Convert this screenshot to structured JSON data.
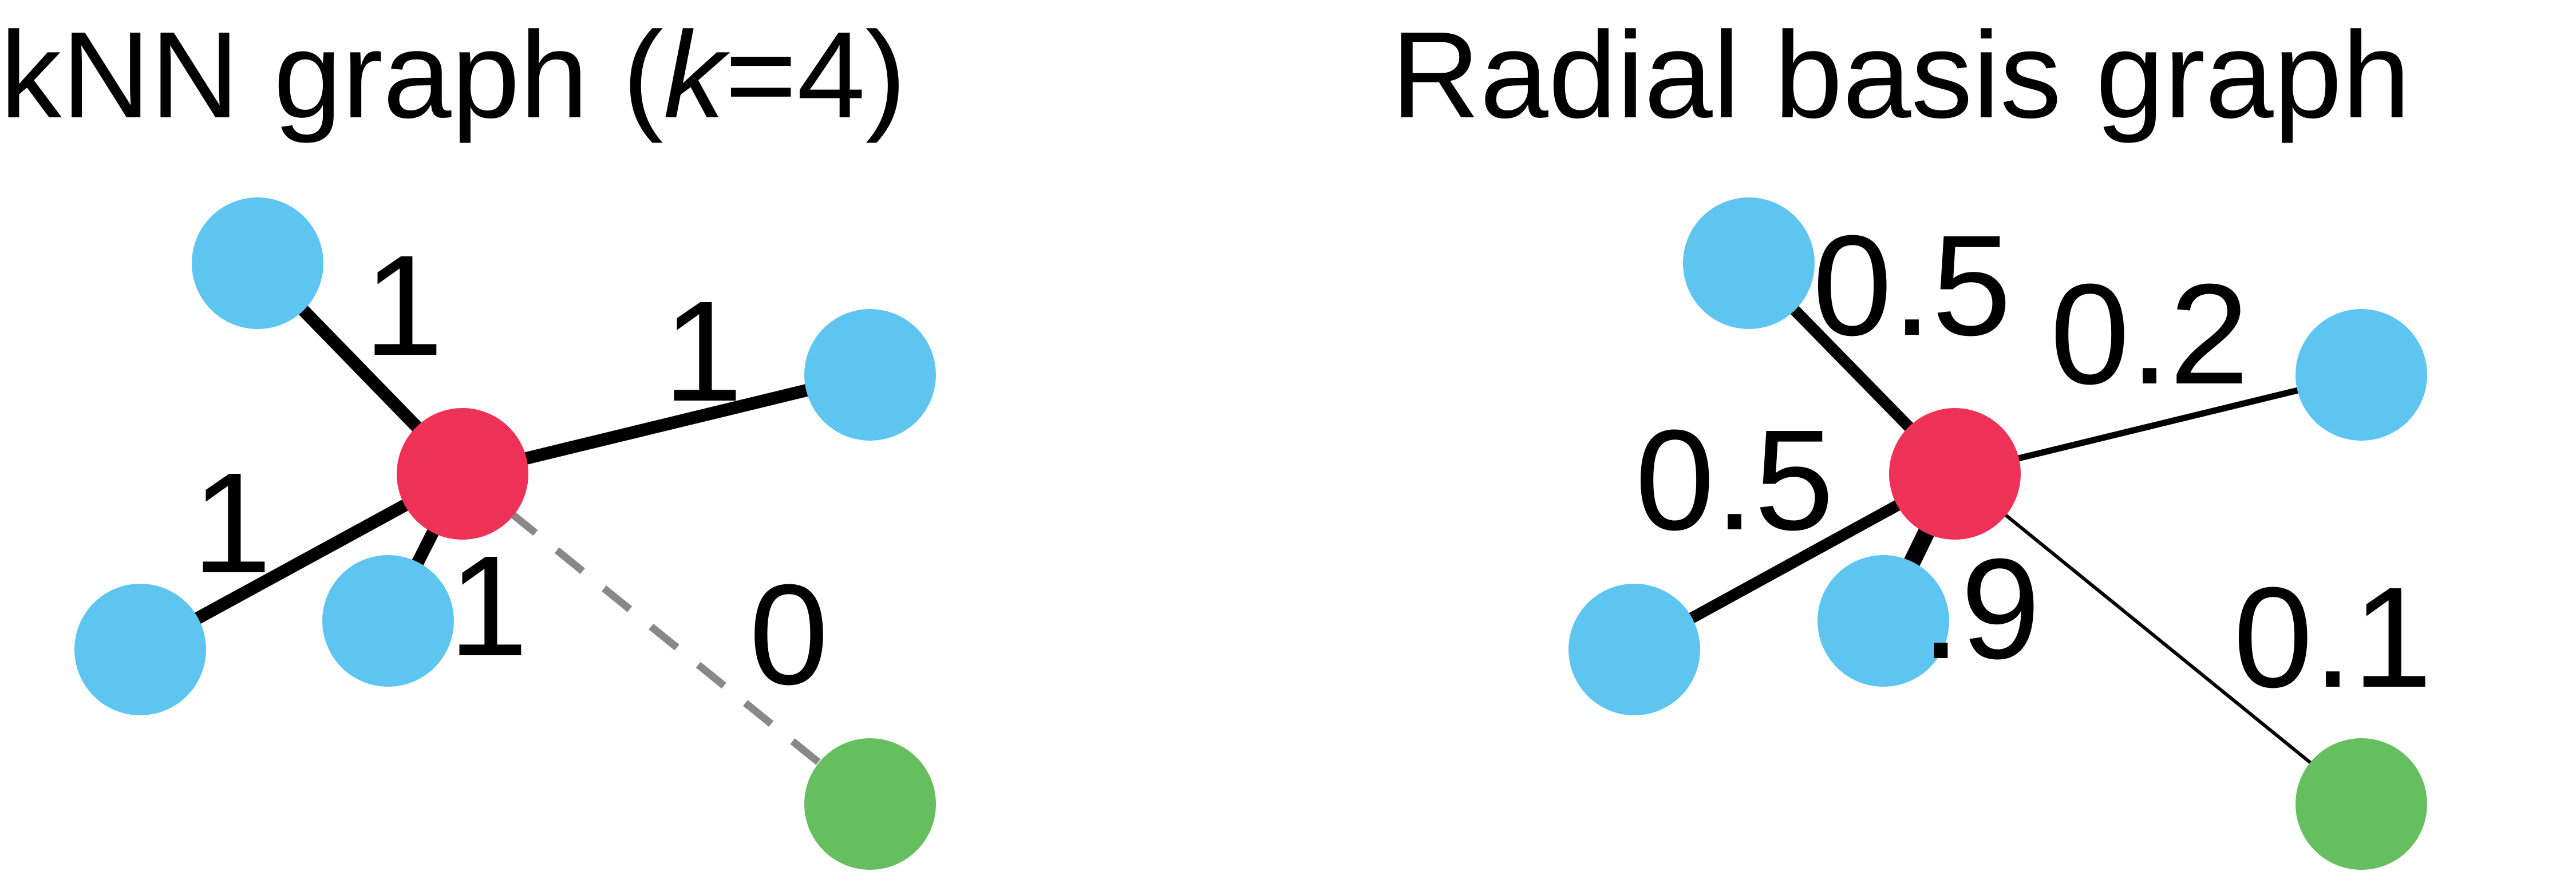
{
  "colors": {
    "center": "#ee3157",
    "neighbor": "#5ec5f1",
    "far": "#66bf5f",
    "edge": "#000000",
    "zero_edge": "#888888"
  },
  "panels": [
    {
      "id": "knn",
      "title_prefix": "kNN graph (",
      "title_k": "k",
      "title_suffix": "=4)",
      "edges": [
        {
          "target": "upper-left",
          "label": "1",
          "weight": 1
        },
        {
          "target": "upper-right",
          "label": "1",
          "weight": 1
        },
        {
          "target": "lower-left",
          "label": "1",
          "weight": 1
        },
        {
          "target": "lower-middle",
          "label": "1",
          "weight": 1
        },
        {
          "target": "far",
          "label": "0",
          "weight": 0,
          "dashed": true
        }
      ]
    },
    {
      "id": "rbf",
      "title": "Radial basis graph",
      "edges": [
        {
          "target": "upper-left",
          "label": "0.5",
          "weight": 0.5
        },
        {
          "target": "upper-right",
          "label": "0.2",
          "weight": 0.2
        },
        {
          "target": "lower-left",
          "label": "0.5",
          "weight": 0.5
        },
        {
          "target": "lower-middle",
          "label": ".9",
          "weight": 0.9
        },
        {
          "target": "far",
          "label": "0.1",
          "weight": 0.1
        }
      ]
    }
  ]
}
